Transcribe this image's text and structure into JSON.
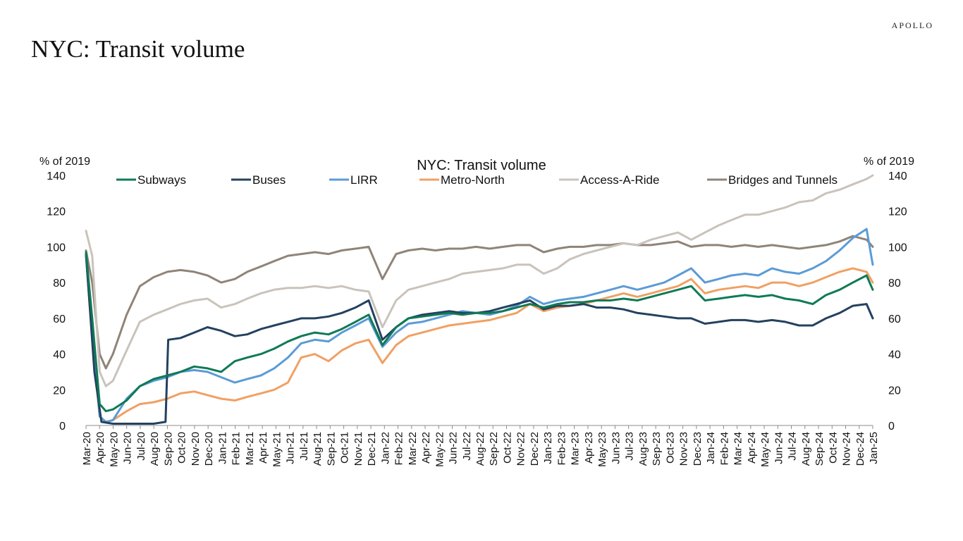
{
  "brand": "APOLLO",
  "page_title": "NYC: Transit volume",
  "chart_data": {
    "type": "line",
    "title": "NYC: Transit volume",
    "ylabel_left": "% of 2019",
    "ylabel_right": "% of 2019",
    "ylim": [
      0,
      140
    ],
    "yticks": [
      0,
      20,
      40,
      60,
      80,
      100,
      120,
      140
    ],
    "x_range": [
      "2020-03-01",
      "2025-01-15"
    ],
    "x_tick_labels": [
      "Mar-20",
      "Apr-20",
      "May-20",
      "Jun-20",
      "Jul-20",
      "Aug-20",
      "Sep-20",
      "Oct-20",
      "Nov-20",
      "Dec-20",
      "Jan-21",
      "Feb-21",
      "Mar-21",
      "Apr-21",
      "May-21",
      "Jun-21",
      "Jul-21",
      "Aug-21",
      "Sep-21",
      "Oct-21",
      "Nov-21",
      "Dec-21",
      "Jan-22",
      "Feb-22",
      "Mar-22",
      "Apr-22",
      "May-22",
      "Jun-22",
      "Jul-22",
      "Aug-22",
      "Sep-22",
      "Oct-22",
      "Nov-22",
      "Dec-22",
      "Jan-23",
      "Feb-23",
      "Mar-23",
      "Apr-23",
      "May-23",
      "Jun-23",
      "Jul-23",
      "Aug-23",
      "Sep-23",
      "Oct-23",
      "Nov-23",
      "Dec-23",
      "Jan-24",
      "Feb-24",
      "Mar-24",
      "Apr-24",
      "May-24",
      "Jun-24",
      "Jul-24",
      "Aug-24",
      "Sep-24",
      "Oct-24",
      "Nov-24",
      "Dec-24",
      "Jan-25"
    ],
    "grid": false,
    "legend_position": "top",
    "series": [
      {
        "name": "Subways",
        "color": "#0f7a55",
        "x": [
          "2020-03-01",
          "2020-03-15",
          "2020-04-01",
          "2020-04-15",
          "2020-05-01",
          "2020-06-01",
          "2020-07-01",
          "2020-08-01",
          "2020-09-01",
          "2020-10-01",
          "2020-11-01",
          "2020-12-01",
          "2021-01-01",
          "2021-02-01",
          "2021-03-01",
          "2021-04-01",
          "2021-05-01",
          "2021-06-01",
          "2021-07-01",
          "2021-08-01",
          "2021-09-01",
          "2021-10-01",
          "2021-11-01",
          "2021-12-01",
          "2022-01-01",
          "2022-02-01",
          "2022-03-01",
          "2022-04-01",
          "2022-05-01",
          "2022-06-01",
          "2022-07-01",
          "2022-08-01",
          "2022-09-01",
          "2022-10-01",
          "2022-11-01",
          "2022-12-01",
          "2023-01-01",
          "2023-02-01",
          "2023-03-01",
          "2023-04-01",
          "2023-05-01",
          "2023-06-01",
          "2023-07-01",
          "2023-08-01",
          "2023-09-01",
          "2023-10-01",
          "2023-11-01",
          "2023-12-01",
          "2024-01-01",
          "2024-02-01",
          "2024-03-01",
          "2024-04-01",
          "2024-05-01",
          "2024-06-01",
          "2024-07-01",
          "2024-08-01",
          "2024-09-01",
          "2024-10-01",
          "2024-11-01",
          "2024-12-01",
          "2025-01-01",
          "2025-01-15"
        ],
        "y": [
          97,
          60,
          12,
          8,
          9,
          14,
          22,
          26,
          28,
          30,
          33,
          32,
          30,
          36,
          38,
          40,
          43,
          47,
          50,
          52,
          51,
          54,
          58,
          62,
          45,
          55,
          60,
          61,
          62,
          63,
          62,
          63,
          63,
          64,
          66,
          68,
          66,
          68,
          69,
          69,
          70,
          70,
          71,
          70,
          72,
          74,
          76,
          78,
          70,
          71,
          72,
          73,
          72,
          73,
          71,
          70,
          68,
          73,
          76,
          80,
          84,
          76
        ]
      },
      {
        "name": "Buses",
        "color": "#24415f",
        "x": [
          "2020-03-01",
          "2020-03-20",
          "2020-04-05",
          "2020-05-01",
          "2020-06-01",
          "2020-07-01",
          "2020-08-01",
          "2020-08-28",
          "2020-09-03",
          "2020-10-01",
          "2020-11-01",
          "2020-12-01",
          "2021-01-01",
          "2021-02-01",
          "2021-03-01",
          "2021-04-01",
          "2021-05-01",
          "2021-06-01",
          "2021-07-01",
          "2021-08-01",
          "2021-09-01",
          "2021-10-01",
          "2021-11-01",
          "2021-12-01",
          "2022-01-01",
          "2022-02-01",
          "2022-03-01",
          "2022-04-01",
          "2022-05-01",
          "2022-06-01",
          "2022-07-01",
          "2022-08-01",
          "2022-09-01",
          "2022-10-01",
          "2022-11-01",
          "2022-12-01",
          "2023-01-01",
          "2023-02-01",
          "2023-03-01",
          "2023-04-01",
          "2023-05-01",
          "2023-06-01",
          "2023-07-01",
          "2023-08-01",
          "2023-09-01",
          "2023-10-01",
          "2023-11-01",
          "2023-12-01",
          "2024-01-01",
          "2024-02-01",
          "2024-03-01",
          "2024-04-01",
          "2024-05-01",
          "2024-06-01",
          "2024-07-01",
          "2024-08-01",
          "2024-09-01",
          "2024-10-01",
          "2024-11-01",
          "2024-12-01",
          "2025-01-01",
          "2025-01-15"
        ],
        "y": [
          96,
          30,
          2,
          1,
          1,
          1,
          1,
          2,
          48,
          49,
          52,
          55,
          53,
          50,
          51,
          54,
          56,
          58,
          60,
          60,
          61,
          63,
          66,
          70,
          48,
          55,
          60,
          62,
          63,
          64,
          63,
          63,
          64,
          66,
          68,
          70,
          65,
          67,
          67,
          68,
          66,
          66,
          65,
          63,
          62,
          61,
          60,
          60,
          57,
          58,
          59,
          59,
          58,
          59,
          58,
          56,
          56,
          60,
          63,
          67,
          68,
          60
        ]
      },
      {
        "name": "LIRR",
        "color": "#5b9bd5",
        "x": [
          "2020-03-01",
          "2020-03-15",
          "2020-04-01",
          "2020-04-15",
          "2020-05-01",
          "2020-06-01",
          "2020-07-01",
          "2020-08-01",
          "2020-09-01",
          "2020-10-01",
          "2020-11-01",
          "2020-12-01",
          "2021-01-01",
          "2021-02-01",
          "2021-03-01",
          "2021-04-01",
          "2021-05-01",
          "2021-06-01",
          "2021-07-01",
          "2021-08-01",
          "2021-09-01",
          "2021-10-01",
          "2021-11-01",
          "2021-12-01",
          "2022-01-01",
          "2022-02-01",
          "2022-03-01",
          "2022-04-01",
          "2022-05-01",
          "2022-06-01",
          "2022-07-01",
          "2022-08-01",
          "2022-09-01",
          "2022-10-01",
          "2022-11-01",
          "2022-12-01",
          "2023-01-01",
          "2023-02-01",
          "2023-03-01",
          "2023-04-01",
          "2023-05-01",
          "2023-06-01",
          "2023-07-01",
          "2023-08-01",
          "2023-09-01",
          "2023-10-01",
          "2023-11-01",
          "2023-12-01",
          "2024-01-01",
          "2024-02-01",
          "2024-03-01",
          "2024-04-01",
          "2024-05-01",
          "2024-06-01",
          "2024-07-01",
          "2024-08-01",
          "2024-09-01",
          "2024-10-01",
          "2024-11-01",
          "2024-12-01",
          "2025-01-01",
          "2025-01-15"
        ],
        "y": [
          95,
          50,
          5,
          2,
          3,
          15,
          22,
          25,
          27,
          30,
          31,
          30,
          27,
          24,
          26,
          28,
          32,
          38,
          46,
          48,
          47,
          52,
          56,
          60,
          44,
          52,
          57,
          58,
          60,
          62,
          64,
          63,
          62,
          64,
          67,
          72,
          68,
          70,
          71,
          72,
          74,
          76,
          78,
          76,
          78,
          80,
          84,
          88,
          80,
          82,
          84,
          85,
          84,
          88,
          86,
          85,
          88,
          92,
          98,
          105,
          110,
          90
        ]
      },
      {
        "name": "Metro-North",
        "color": "#f0a064",
        "x": [
          "2020-03-01",
          "2020-03-15",
          "2020-04-01",
          "2020-04-15",
          "2020-05-01",
          "2020-06-01",
          "2020-07-01",
          "2020-08-01",
          "2020-09-01",
          "2020-10-01",
          "2020-11-01",
          "2020-12-01",
          "2021-01-01",
          "2021-02-01",
          "2021-03-01",
          "2021-04-01",
          "2021-05-01",
          "2021-06-01",
          "2021-07-01",
          "2021-08-01",
          "2021-09-01",
          "2021-10-01",
          "2021-11-01",
          "2021-12-01",
          "2022-01-01",
          "2022-02-01",
          "2022-03-01",
          "2022-04-01",
          "2022-05-01",
          "2022-06-01",
          "2022-07-01",
          "2022-08-01",
          "2022-09-01",
          "2022-10-01",
          "2022-11-01",
          "2022-12-01",
          "2023-01-01",
          "2023-02-01",
          "2023-03-01",
          "2023-04-01",
          "2023-05-01",
          "2023-06-01",
          "2023-07-01",
          "2023-08-01",
          "2023-09-01",
          "2023-10-01",
          "2023-11-01",
          "2023-12-01",
          "2024-01-01",
          "2024-02-01",
          "2024-03-01",
          "2024-04-01",
          "2024-05-01",
          "2024-06-01",
          "2024-07-01",
          "2024-08-01",
          "2024-09-01",
          "2024-10-01",
          "2024-11-01",
          "2024-12-01",
          "2025-01-01",
          "2025-01-15"
        ],
        "y": [
          95,
          50,
          5,
          2,
          3,
          8,
          12,
          13,
          15,
          18,
          19,
          17,
          15,
          14,
          16,
          18,
          20,
          24,
          38,
          40,
          36,
          42,
          46,
          48,
          35,
          45,
          50,
          52,
          54,
          56,
          57,
          58,
          59,
          61,
          63,
          68,
          64,
          66,
          67,
          68,
          70,
          72,
          74,
          72,
          74,
          76,
          78,
          82,
          74,
          76,
          77,
          78,
          77,
          80,
          80,
          78,
          80,
          83,
          86,
          88,
          86,
          80
        ]
      },
      {
        "name": "Access-A-Ride",
        "color": "#c9c3bb",
        "x": [
          "2020-03-01",
          "2020-03-15",
          "2020-04-01",
          "2020-04-15",
          "2020-05-01",
          "2020-06-01",
          "2020-07-01",
          "2020-08-01",
          "2020-09-01",
          "2020-10-01",
          "2020-11-01",
          "2020-12-01",
          "2021-01-01",
          "2021-02-01",
          "2021-03-01",
          "2021-04-01",
          "2021-05-01",
          "2021-06-01",
          "2021-07-01",
          "2021-08-01",
          "2021-09-01",
          "2021-10-01",
          "2021-11-01",
          "2021-12-01",
          "2022-01-01",
          "2022-02-01",
          "2022-03-01",
          "2022-04-01",
          "2022-05-01",
          "2022-06-01",
          "2022-07-01",
          "2022-08-01",
          "2022-09-01",
          "2022-10-01",
          "2022-11-01",
          "2022-12-01",
          "2023-01-01",
          "2023-02-01",
          "2023-03-01",
          "2023-04-01",
          "2023-05-01",
          "2023-06-01",
          "2023-07-01",
          "2023-08-01",
          "2023-09-01",
          "2023-10-01",
          "2023-11-01",
          "2023-12-01",
          "2024-01-01",
          "2024-02-01",
          "2024-03-01",
          "2024-04-01",
          "2024-05-01",
          "2024-06-01",
          "2024-07-01",
          "2024-08-01",
          "2024-09-01",
          "2024-10-01",
          "2024-11-01",
          "2024-12-01",
          "2025-01-01",
          "2025-01-15"
        ],
        "y": [
          109,
          95,
          30,
          22,
          25,
          42,
          58,
          62,
          65,
          68,
          70,
          71,
          66,
          68,
          71,
          74,
          76,
          77,
          77,
          78,
          77,
          78,
          76,
          75,
          55,
          70,
          76,
          78,
          80,
          82,
          85,
          86,
          87,
          88,
          90,
          90,
          85,
          88,
          93,
          96,
          98,
          100,
          102,
          101,
          104,
          106,
          108,
          104,
          108,
          112,
          115,
          118,
          118,
          120,
          122,
          125,
          126,
          130,
          132,
          135,
          138,
          140
        ]
      },
      {
        "name": "Bridges and Tunnels",
        "color": "#8f8478",
        "x": [
          "2020-03-01",
          "2020-03-15",
          "2020-04-01",
          "2020-04-15",
          "2020-05-01",
          "2020-06-01",
          "2020-07-01",
          "2020-08-01",
          "2020-09-01",
          "2020-10-01",
          "2020-11-01",
          "2020-12-01",
          "2021-01-01",
          "2021-02-01",
          "2021-03-01",
          "2021-04-01",
          "2021-05-01",
          "2021-06-01",
          "2021-07-01",
          "2021-08-01",
          "2021-09-01",
          "2021-10-01",
          "2021-11-01",
          "2021-12-01",
          "2022-01-01",
          "2022-02-01",
          "2022-03-01",
          "2022-04-01",
          "2022-05-01",
          "2022-06-01",
          "2022-07-01",
          "2022-08-01",
          "2022-09-01",
          "2022-10-01",
          "2022-11-01",
          "2022-12-01",
          "2023-01-01",
          "2023-02-01",
          "2023-03-01",
          "2023-04-01",
          "2023-05-01",
          "2023-06-01",
          "2023-07-01",
          "2023-08-01",
          "2023-09-01",
          "2023-10-01",
          "2023-11-01",
          "2023-12-01",
          "2024-01-01",
          "2024-02-01",
          "2024-03-01",
          "2024-04-01",
          "2024-05-01",
          "2024-06-01",
          "2024-07-01",
          "2024-08-01",
          "2024-09-01",
          "2024-10-01",
          "2024-11-01",
          "2024-12-01",
          "2025-01-01",
          "2025-01-15"
        ],
        "y": [
          98,
          80,
          40,
          32,
          40,
          62,
          78,
          83,
          86,
          87,
          86,
          84,
          80,
          82,
          86,
          89,
          92,
          95,
          96,
          97,
          96,
          98,
          99,
          100,
          82,
          96,
          98,
          99,
          98,
          99,
          99,
          100,
          99,
          100,
          101,
          101,
          97,
          99,
          100,
          100,
          101,
          101,
          102,
          101,
          101,
          102,
          103,
          100,
          101,
          101,
          100,
          101,
          100,
          101,
          100,
          99,
          100,
          101,
          103,
          106,
          104,
          100
        ]
      }
    ]
  }
}
